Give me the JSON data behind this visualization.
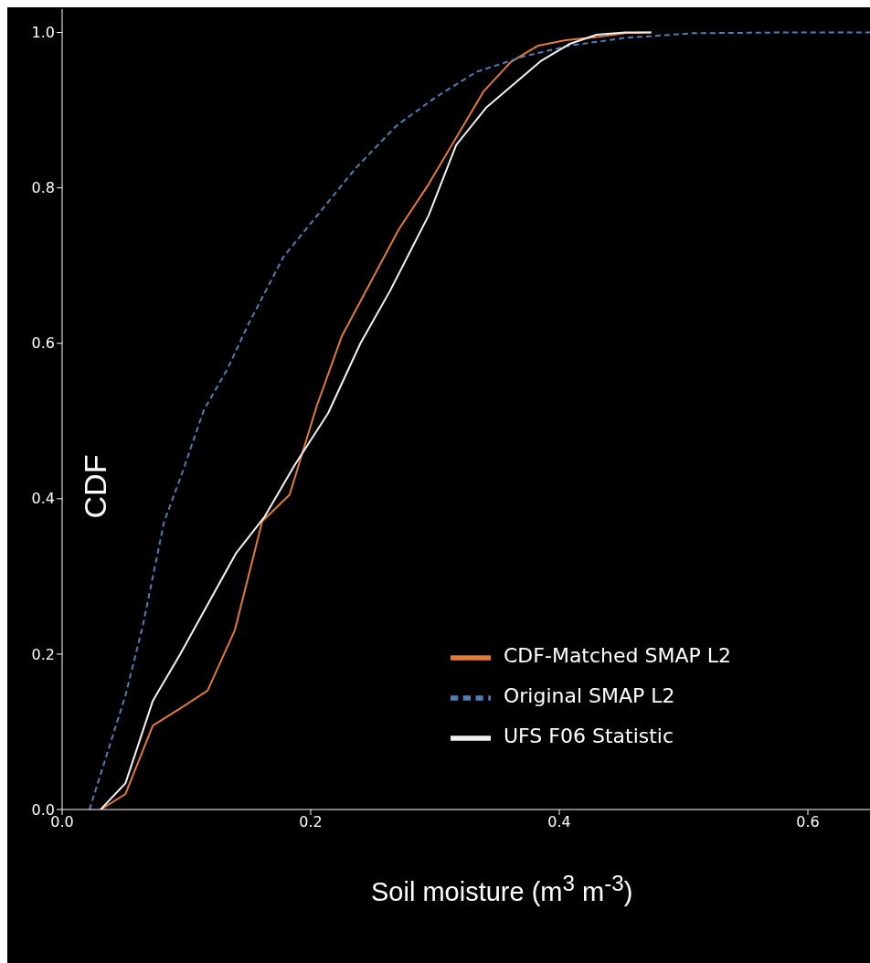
{
  "chart_data": {
    "type": "line",
    "xlabel": "Soil moisture (m$^{3}$ m$^{-3}$)",
    "ylabel": "CDF",
    "xlim": [
      0,
      0.65
    ],
    "ylim": [
      0,
      1.03
    ],
    "xticks": [
      {
        "value": 0,
        "label": "0.0"
      },
      0.2,
      0.4,
      0.6
    ],
    "yticks": [
      {
        "value": 0,
        "label": "0.0"
      },
      0.2,
      0.4,
      0.6,
      0.8,
      {
        "value": 1,
        "label": "1.0"
      }
    ],
    "grid": false,
    "legend": "lower right",
    "marker": "none",
    "series": [
      {
        "name": "UFS F06 Statistic",
        "color": "#f2f2f2",
        "line_style": "solid",
        "x": [
          0.031,
          0.051,
          0.073,
          0.095,
          0.14,
          0.163,
          0.187,
          0.214,
          0.24,
          0.264,
          0.295,
          0.317,
          0.341,
          0.385,
          0.408,
          0.43,
          0.453,
          0.474
        ],
        "values": [
          0,
          0.034,
          0.14,
          0.2,
          0.33,
          0.377,
          0.443,
          0.51,
          0.6,
          0.668,
          0.765,
          0.855,
          0.903,
          0.963,
          0.985,
          0.997,
          1.0,
          1.0
        ]
      },
      {
        "name": "Original SMAP L2",
        "color": "#4f7fb5",
        "line_style": "dashed",
        "x": [
          0.022,
          0.051,
          0.065,
          0.072,
          0.082,
          0.097,
          0.114,
          0.133,
          0.15,
          0.178,
          0.207,
          0.236,
          0.269,
          0.3,
          0.333,
          0.371,
          0.408,
          0.453,
          0.508,
          0.58,
          0.65
        ],
        "values": [
          0,
          0.147,
          0.237,
          0.292,
          0.37,
          0.435,
          0.514,
          0.567,
          0.625,
          0.711,
          0.768,
          0.825,
          0.88,
          0.916,
          0.949,
          0.969,
          0.983,
          0.993,
          0.999,
          1.0,
          1.0
        ]
      },
      {
        "name": "CDF-Matched SMAP L2",
        "color": "#e07b39",
        "line_style": "solid",
        "x": [
          0.031,
          0.051,
          0.073,
          0.095,
          0.117,
          0.139,
          0.161,
          0.183,
          0.205,
          0.225,
          0.271,
          0.295,
          0.339,
          0.361,
          0.383,
          0.405,
          0.43,
          0.453,
          0.474
        ],
        "values": [
          0,
          0.02,
          0.108,
          0.13,
          0.153,
          0.231,
          0.371,
          0.405,
          0.52,
          0.609,
          0.747,
          0.805,
          0.924,
          0.962,
          0.983,
          0.99,
          0.994,
          0.999,
          1.0
        ]
      }
    ]
  }
}
